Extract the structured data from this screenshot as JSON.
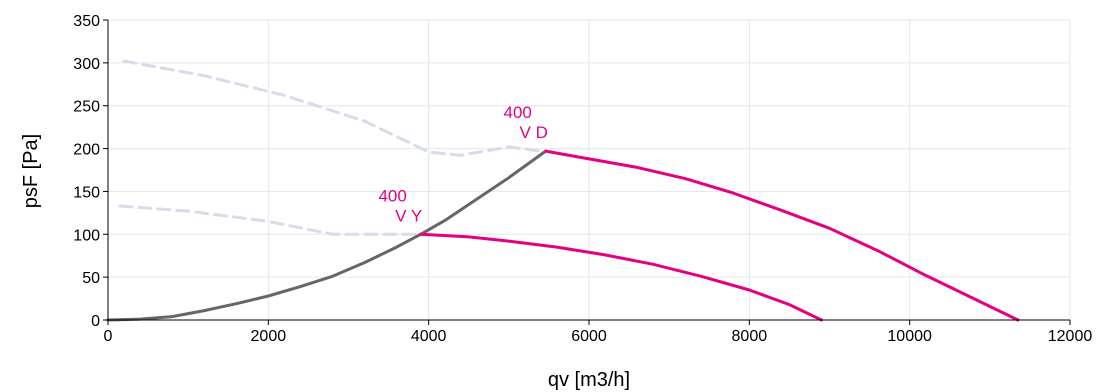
{
  "chart_data": {
    "type": "line",
    "xlabel": "qv [m3/h]",
    "ylabel": "psF [Pa]",
    "xlim": [
      0,
      12000
    ],
    "ylim": [
      0,
      350
    ],
    "x_ticks": [
      "0",
      "2000",
      "4000",
      "6000",
      "8000",
      "10000",
      "12000"
    ],
    "y_ticks": [
      "0",
      "50",
      "100",
      "150",
      "200",
      "250",
      "300",
      "350"
    ],
    "grid": true,
    "colors": {
      "pink": "#e5007e",
      "gray": "#666666",
      "dashed": "#d6dce8",
      "grid": "#e2e6ee"
    },
    "series": [
      {
        "style": "dashed",
        "color": "#d6dce8",
        "x": [
          200,
          1200,
          2200,
          3200,
          4000,
          4400,
          5000,
          5400
        ],
        "y": [
          302,
          285,
          262,
          232,
          196,
          192,
          202,
          197
        ]
      },
      {
        "style": "dashed",
        "color": "#d6dce8",
        "x": [
          150,
          1000,
          2000,
          2800,
          3500,
          3900
        ],
        "y": [
          133,
          127,
          115,
          100,
          100,
          100
        ]
      },
      {
        "style": "solid",
        "color": "#666666",
        "x": [
          0,
          400,
          800,
          1200,
          1600,
          2000,
          2400,
          2800,
          3200,
          3600,
          3900,
          4200,
          4600,
          5000,
          5460
        ],
        "y": [
          0,
          1,
          4,
          11,
          19,
          28,
          39,
          51,
          67,
          85,
          100,
          116,
          141,
          166,
          197
        ]
      },
      {
        "style": "solid",
        "color": "#e5007e",
        "x": [
          5460,
          6000,
          6600,
          7200,
          7800,
          8400,
          9000,
          9600,
          10200,
          10800,
          11350
        ],
        "y": [
          197,
          188,
          178,
          165,
          148,
          128,
          107,
          81,
          52,
          25,
          0
        ]
      },
      {
        "style": "solid",
        "color": "#e5007e",
        "x": [
          3900,
          4500,
          5000,
          5600,
          6200,
          6800,
          7400,
          8000,
          8500,
          8900
        ],
        "y": [
          100,
          97,
          92,
          85,
          76,
          65,
          51,
          35,
          18,
          0
        ]
      }
    ],
    "annotations": [
      {
        "line1": "400",
        "line2": "V D",
        "x": 5460,
        "y": 197
      },
      {
        "line1": "400",
        "line2": "V Y",
        "x": 3900,
        "y": 100
      }
    ]
  }
}
